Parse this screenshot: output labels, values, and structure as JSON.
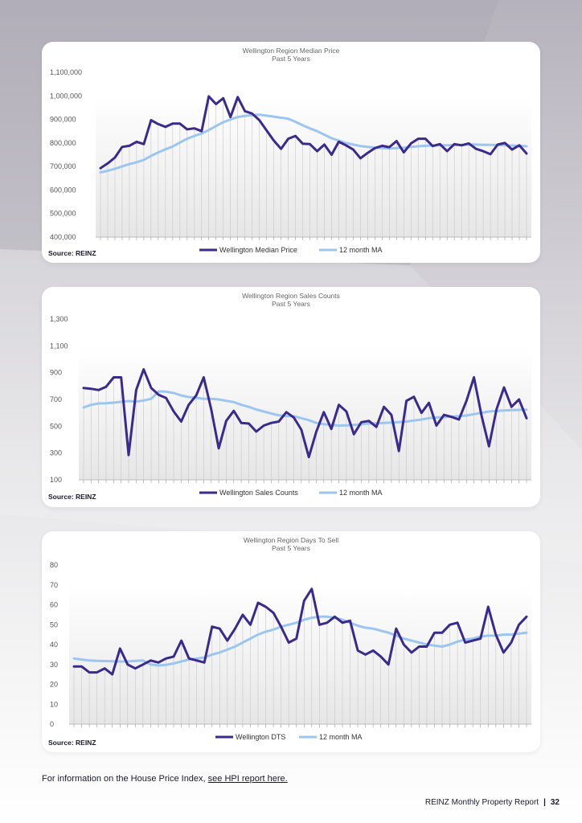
{
  "colors": {
    "series": "#3b2a8c",
    "ma": "#9bc6f2",
    "axis_text": "#555555",
    "title_text": "#666666"
  },
  "chart_data": [
    {
      "type": "line",
      "title": "Wellington Region Median Price",
      "subtitle": "Past 5 Years",
      "xlabel": "",
      "ylabel": "",
      "ylim": [
        400000,
        1100000
      ],
      "yticks": [
        400000,
        500000,
        600000,
        700000,
        800000,
        900000,
        1000000,
        1100000
      ],
      "ytick_labels": [
        "400,000",
        "500,000",
        "600,000",
        "700,000",
        "800,000",
        "900,000",
        "1,000,000",
        "1,100,000"
      ],
      "grid": false,
      "legend": "bottom",
      "source": "Source: REINZ",
      "series": [
        {
          "name": "Wellington Median Price",
          "values": [
            693000,
            713000,
            738000,
            783000,
            788000,
            805000,
            795000,
            897000,
            880000,
            868000,
            882000,
            882000,
            858000,
            862000,
            850000,
            998000,
            965000,
            990000,
            910000,
            995000,
            935000,
            925000,
            897000,
            853000,
            810000,
            775000,
            818000,
            830000,
            797000,
            795000,
            765000,
            793000,
            750000,
            805000,
            790000,
            772000,
            735000,
            758000,
            778000,
            788000,
            782000,
            808000,
            760000,
            798000,
            818000,
            818000,
            787000,
            795000,
            765000,
            795000,
            790000,
            798000,
            775000,
            765000,
            752000,
            793000,
            800000,
            772000,
            790000,
            755000
          ]
        },
        {
          "name": "12 month MA",
          "values": [
            675000,
            682000,
            690000,
            700000,
            710000,
            718000,
            728000,
            745000,
            760000,
            773000,
            785000,
            802000,
            818000,
            830000,
            840000,
            855000,
            872000,
            888000,
            900000,
            910000,
            915000,
            918000,
            920000,
            916000,
            912000,
            907000,
            903000,
            890000,
            875000,
            862000,
            850000,
            835000,
            820000,
            810000,
            800000,
            793000,
            787000,
            783000,
            780000,
            778000,
            776000,
            778000,
            780000,
            783000,
            786000,
            788000,
            789000,
            790000,
            790000,
            791000,
            792000,
            793000,
            793000,
            792000,
            792000,
            791000,
            790000,
            789000,
            788000,
            786000
          ]
        }
      ]
    },
    {
      "type": "line",
      "title": "Wellington Region Sales Counts",
      "subtitle": "Past 5 Years",
      "xlabel": "",
      "ylabel": "",
      "ylim": [
        100,
        1300
      ],
      "yticks": [
        100,
        300,
        500,
        700,
        900,
        1100,
        1300
      ],
      "ytick_labels": [
        "100",
        "300",
        "500",
        "700",
        "900",
        "1,100",
        "1,300"
      ],
      "grid": false,
      "legend": "bottom",
      "source": "Source: REINZ",
      "series": [
        {
          "name": "Wellington Sales Counts",
          "values": [
            785,
            780,
            770,
            795,
            865,
            865,
            285,
            770,
            925,
            785,
            735,
            710,
            610,
            535,
            660,
            730,
            865,
            625,
            335,
            540,
            615,
            525,
            520,
            460,
            505,
            525,
            535,
            605,
            565,
            475,
            270,
            460,
            605,
            480,
            660,
            610,
            440,
            530,
            540,
            495,
            645,
            585,
            315,
            690,
            720,
            600,
            675,
            505,
            585,
            570,
            550,
            690,
            865,
            580,
            350,
            625,
            790,
            645,
            700,
            560
          ]
        },
        {
          "name": "12 month MA",
          "values": [
            640,
            660,
            670,
            672,
            676,
            682,
            688,
            684,
            692,
            705,
            760,
            758,
            748,
            730,
            718,
            712,
            705,
            705,
            700,
            690,
            680,
            660,
            645,
            625,
            610,
            595,
            582,
            575,
            575,
            560,
            545,
            525,
            515,
            510,
            505,
            506,
            510,
            515,
            520,
            522,
            525,
            528,
            530,
            535,
            543,
            550,
            560,
            565,
            568,
            572,
            575,
            580,
            590,
            600,
            610,
            615,
            618,
            620,
            622,
            624
          ]
        }
      ]
    },
    {
      "type": "line",
      "title": "Wellington Region Days To Sell",
      "subtitle": "Past 5 Years",
      "xlabel": "",
      "ylabel": "",
      "ylim": [
        0,
        80
      ],
      "yticks": [
        0,
        10,
        20,
        30,
        40,
        50,
        60,
        70,
        80
      ],
      "ytick_labels": [
        "0",
        "10",
        "20",
        "30",
        "40",
        "50",
        "60",
        "70",
        "80"
      ],
      "grid": false,
      "legend": "bottom",
      "source": "Source: REINZ",
      "series": [
        {
          "name": "Wellington DTS",
          "values": [
            29,
            29,
            26,
            26,
            28,
            25,
            38,
            30,
            28,
            30,
            32,
            31,
            33,
            34,
            42,
            33,
            32,
            31,
            49,
            48,
            42,
            48,
            55,
            50,
            61,
            59,
            56,
            49,
            41,
            43,
            62,
            68,
            50,
            51,
            54,
            51,
            52,
            37,
            35,
            37,
            34,
            30,
            48,
            40,
            36,
            39,
            39,
            46,
            46,
            50,
            51,
            41,
            42,
            43,
            59,
            45,
            36,
            41,
            50,
            54
          ]
        },
        {
          "name": "12 month MA",
          "values": [
            33,
            32.5,
            32,
            31.8,
            31.7,
            31.6,
            31.5,
            31.5,
            31.8,
            32,
            30,
            29.5,
            29.8,
            30.5,
            31.5,
            32.5,
            33,
            33.5,
            35,
            36,
            37.5,
            39,
            41,
            43,
            45,
            46.5,
            47.5,
            49,
            50,
            51,
            52.5,
            53.5,
            54,
            54,
            53.5,
            52.5,
            51,
            49.5,
            48.5,
            48,
            47,
            46,
            44.5,
            43,
            42,
            41,
            40,
            39.5,
            39,
            40,
            41.5,
            42.5,
            43,
            44,
            44.5,
            44.5,
            45,
            45,
            45.5,
            46
          ]
        }
      ]
    }
  ],
  "footer": {
    "info_text": "For information on the House Price Index, ",
    "info_link": "see HPI report here.",
    "report_name": "REINZ Monthly Property Report",
    "separator": "|",
    "page_number": "32"
  }
}
